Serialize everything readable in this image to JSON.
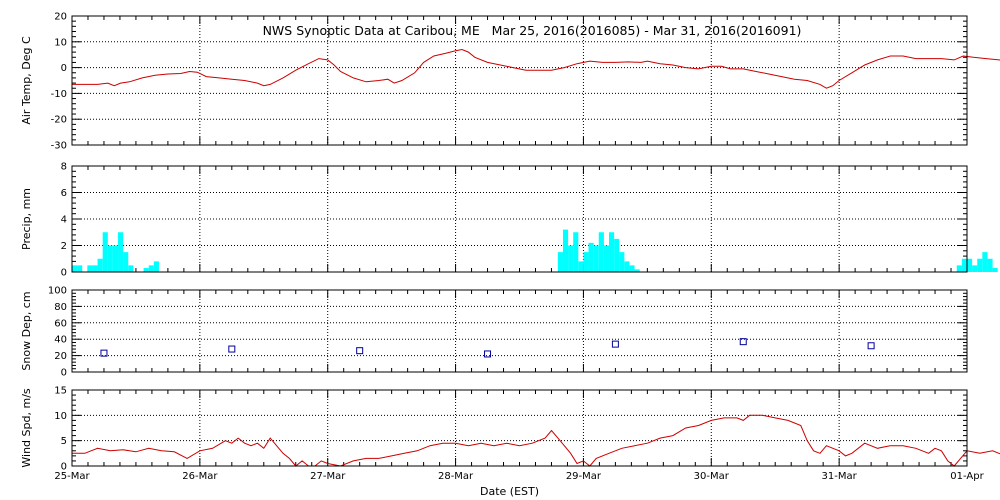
{
  "title": "NWS Synoptic Data at Caribou, ME   Mar 25, 2016(2016085) - Mar 31, 2016(2016091)",
  "xlabel": "Date (EST)",
  "x_ticks": [
    "25-Mar",
    "26-Mar",
    "27-Mar",
    "28-Mar",
    "29-Mar",
    "30-Mar",
    "31-Mar",
    "01-Apr"
  ],
  "colors": {
    "temp": "#cc0000",
    "precip": "#00ffff",
    "snow": "#000099",
    "wind": "#cc0000"
  },
  "chart_data": [
    {
      "type": "line",
      "ylabel": "Air Temp, Deg C",
      "ylim": [
        -30,
        20
      ],
      "yticks": [
        -30,
        -20,
        -10,
        0,
        10,
        20
      ],
      "grid": true,
      "x_unit": "days since 25-Mar 00:00 EST",
      "points": [
        [
          0,
          -6.5
        ],
        [
          0.1,
          -6.5
        ],
        [
          0.2,
          -6.5
        ],
        [
          0.28,
          -6
        ],
        [
          0.33,
          -7
        ],
        [
          0.38,
          -6
        ],
        [
          0.45,
          -5.5
        ],
        [
          0.55,
          -4
        ],
        [
          0.65,
          -3
        ],
        [
          0.75,
          -2.5
        ],
        [
          0.85,
          -2.3
        ],
        [
          0.92,
          -1.5
        ],
        [
          0.98,
          -1.8
        ],
        [
          1.05,
          -3.5
        ],
        [
          1.15,
          -4
        ],
        [
          1.25,
          -4.5
        ],
        [
          1.35,
          -5
        ],
        [
          1.45,
          -6
        ],
        [
          1.5,
          -7
        ],
        [
          1.55,
          -6.5
        ],
        [
          1.65,
          -4
        ],
        [
          1.75,
          -1
        ],
        [
          1.85,
          1.5
        ],
        [
          1.93,
          3.5
        ],
        [
          2.0,
          3
        ],
        [
          2.05,
          1
        ],
        [
          2.1,
          -1.5
        ],
        [
          2.2,
          -4
        ],
        [
          2.3,
          -5.5
        ],
        [
          2.4,
          -5
        ],
        [
          2.47,
          -4.5
        ],
        [
          2.52,
          -6
        ],
        [
          2.58,
          -5
        ],
        [
          2.68,
          -2
        ],
        [
          2.75,
          2
        ],
        [
          2.83,
          4.5
        ],
        [
          2.92,
          5.5
        ],
        [
          3.0,
          6.5
        ],
        [
          3.05,
          7
        ],
        [
          3.1,
          6
        ],
        [
          3.15,
          4
        ],
        [
          3.25,
          2
        ],
        [
          3.35,
          1
        ],
        [
          3.45,
          0
        ],
        [
          3.55,
          -1
        ],
        [
          3.65,
          -1
        ],
        [
          3.75,
          -1
        ],
        [
          3.85,
          0
        ],
        [
          3.95,
          1.5
        ],
        [
          4.05,
          2.5
        ],
        [
          4.15,
          2
        ],
        [
          4.25,
          2
        ],
        [
          4.35,
          2.2
        ],
        [
          4.45,
          2
        ],
        [
          4.5,
          2.5
        ],
        [
          4.6,
          1.5
        ],
        [
          4.7,
          1
        ],
        [
          4.8,
          0
        ],
        [
          4.9,
          -0.5
        ],
        [
          5.0,
          0.5
        ],
        [
          5.08,
          0.5
        ],
        [
          5.15,
          -0.5
        ],
        [
          5.25,
          -0.5
        ],
        [
          5.35,
          -1.5
        ],
        [
          5.45,
          -2.5
        ],
        [
          5.55,
          -3.5
        ],
        [
          5.65,
          -4.5
        ],
        [
          5.75,
          -5
        ],
        [
          5.85,
          -6.5
        ],
        [
          5.9,
          -8
        ],
        [
          5.95,
          -7
        ],
        [
          6.0,
          -5
        ],
        [
          6.1,
          -2
        ],
        [
          6.2,
          1
        ],
        [
          6.3,
          3
        ],
        [
          6.4,
          4.5
        ],
        [
          6.5,
          4.5
        ],
        [
          6.6,
          3.5
        ],
        [
          6.7,
          3.5
        ],
        [
          6.8,
          3.5
        ],
        [
          6.9,
          3
        ],
        [
          6.97,
          4.5
        ],
        [
          7.05,
          4
        ],
        [
          7.15,
          3.5
        ],
        [
          7.25,
          3
        ],
        [
          7.35,
          2.5
        ],
        [
          7.45,
          2
        ],
        [
          7.55,
          3
        ],
        [
          7.65,
          3
        ],
        [
          7.75,
          3.2
        ],
        [
          7.85,
          3.5
        ],
        [
          7.93,
          4.5
        ],
        [
          8.0,
          4.5
        ]
      ]
    },
    {
      "type": "bar",
      "ylabel": "Precip, mm",
      "ylim": [
        0,
        8
      ],
      "yticks": [
        0,
        2,
        4,
        6,
        8
      ],
      "grid": true,
      "x_unit": "days since 25-Mar 00:00 EST",
      "bins": [
        [
          0.0,
          0.5
        ],
        [
          0.04,
          0.5
        ],
        [
          0.12,
          0.5
        ],
        [
          0.16,
          0.5
        ],
        [
          0.2,
          1.0
        ],
        [
          0.24,
          3.0
        ],
        [
          0.28,
          2.0
        ],
        [
          0.32,
          2.0
        ],
        [
          0.36,
          3.0
        ],
        [
          0.4,
          1.5
        ],
        [
          0.44,
          0.5
        ],
        [
          0.56,
          0.3
        ],
        [
          0.6,
          0.5
        ],
        [
          0.64,
          0.8
        ],
        [
          3.8,
          1.5
        ],
        [
          3.84,
          3.2
        ],
        [
          3.88,
          2.0
        ],
        [
          3.92,
          3.0
        ],
        [
          3.96,
          0.8
        ],
        [
          4.0,
          1.5
        ],
        [
          4.04,
          2.2
        ],
        [
          4.08,
          2.0
        ],
        [
          4.12,
          3.0
        ],
        [
          4.16,
          2.0
        ],
        [
          4.2,
          3.0
        ],
        [
          4.24,
          2.5
        ],
        [
          4.28,
          1.5
        ],
        [
          4.32,
          0.8
        ],
        [
          4.36,
          0.5
        ],
        [
          4.4,
          0.2
        ],
        [
          6.92,
          0.5
        ],
        [
          6.96,
          1.0
        ],
        [
          7.0,
          1.0
        ],
        [
          7.04,
          0.5
        ],
        [
          7.08,
          1.0
        ],
        [
          7.12,
          1.5
        ],
        [
          7.16,
          1.0
        ],
        [
          7.2,
          0.3
        ],
        [
          7.28,
          0.3
        ]
      ],
      "bin_width": 0.04
    },
    {
      "type": "scatter",
      "ylabel": "Snow Dep, cm",
      "ylim": [
        0,
        100
      ],
      "yticks": [
        0,
        20,
        40,
        60,
        80,
        100
      ],
      "grid": true,
      "x_unit": "days since 25-Mar 00:00 EST",
      "points": [
        [
          0.25,
          23
        ],
        [
          1.25,
          28
        ],
        [
          2.25,
          26
        ],
        [
          3.25,
          22
        ],
        [
          4.25,
          34
        ],
        [
          5.25,
          37
        ],
        [
          6.25,
          32
        ]
      ]
    },
    {
      "type": "line",
      "ylabel": "Wind Spd, m/s",
      "ylim": [
        0,
        15
      ],
      "yticks": [
        0,
        5,
        10,
        15
      ],
      "grid": true,
      "x_unit": "days since 25-Mar 00:00 EST",
      "points": [
        [
          0,
          2.5
        ],
        [
          0.1,
          2.5
        ],
        [
          0.2,
          3.5
        ],
        [
          0.3,
          3
        ],
        [
          0.4,
          3.2
        ],
        [
          0.5,
          2.8
        ],
        [
          0.6,
          3.5
        ],
        [
          0.7,
          3
        ],
        [
          0.8,
          2.8
        ],
        [
          0.9,
          1.5
        ],
        [
          1.0,
          3
        ],
        [
          1.1,
          3.5
        ],
        [
          1.2,
          5
        ],
        [
          1.25,
          4.5
        ],
        [
          1.3,
          5.5
        ],
        [
          1.35,
          4.5
        ],
        [
          1.4,
          4
        ],
        [
          1.45,
          4.5
        ],
        [
          1.5,
          3.5
        ],
        [
          1.55,
          5.5
        ],
        [
          1.6,
          4
        ],
        [
          1.65,
          2.5
        ],
        [
          1.7,
          1.5
        ],
        [
          1.75,
          0
        ],
        [
          1.8,
          1
        ],
        [
          1.85,
          0
        ],
        [
          1.9,
          0
        ],
        [
          1.95,
          1
        ],
        [
          2.0,
          0.5
        ],
        [
          2.1,
          0
        ],
        [
          2.2,
          1
        ],
        [
          2.3,
          1.5
        ],
        [
          2.4,
          1.5
        ],
        [
          2.5,
          2
        ],
        [
          2.6,
          2.5
        ],
        [
          2.7,
          3
        ],
        [
          2.8,
          4
        ],
        [
          2.9,
          4.5
        ],
        [
          3.0,
          4.5
        ],
        [
          3.1,
          4
        ],
        [
          3.2,
          4.5
        ],
        [
          3.3,
          4
        ],
        [
          3.4,
          4.5
        ],
        [
          3.5,
          4
        ],
        [
          3.6,
          4.5
        ],
        [
          3.7,
          5.5
        ],
        [
          3.75,
          7
        ],
        [
          3.8,
          5.5
        ],
        [
          3.85,
          4
        ],
        [
          3.9,
          2.5
        ],
        [
          3.95,
          0.5
        ],
        [
          4.0,
          1
        ],
        [
          4.05,
          0
        ],
        [
          4.1,
          1.5
        ],
        [
          4.2,
          2.5
        ],
        [
          4.3,
          3.5
        ],
        [
          4.4,
          4
        ],
        [
          4.5,
          4.5
        ],
        [
          4.6,
          5.5
        ],
        [
          4.7,
          6
        ],
        [
          4.8,
          7.5
        ],
        [
          4.9,
          8
        ],
        [
          5.0,
          9
        ],
        [
          5.1,
          9.5
        ],
        [
          5.2,
          9.5
        ],
        [
          5.25,
          9
        ],
        [
          5.3,
          10
        ],
        [
          5.4,
          10
        ],
        [
          5.5,
          9.5
        ],
        [
          5.6,
          9
        ],
        [
          5.7,
          8
        ],
        [
          5.75,
          5
        ],
        [
          5.8,
          3
        ],
        [
          5.85,
          2.5
        ],
        [
          5.9,
          4
        ],
        [
          6.0,
          3
        ],
        [
          6.05,
          2
        ],
        [
          6.1,
          2.5
        ],
        [
          6.2,
          4.5
        ],
        [
          6.3,
          3.5
        ],
        [
          6.4,
          4
        ],
        [
          6.5,
          4
        ],
        [
          6.6,
          3.5
        ],
        [
          6.7,
          2.5
        ],
        [
          6.75,
          3.5
        ],
        [
          6.8,
          3
        ],
        [
          6.85,
          1
        ],
        [
          6.9,
          0
        ],
        [
          6.95,
          1.5
        ],
        [
          7.0,
          3
        ],
        [
          7.1,
          2.5
        ],
        [
          7.2,
          3
        ],
        [
          7.3,
          2
        ],
        [
          7.4,
          2.5
        ],
        [
          7.5,
          3
        ],
        [
          7.6,
          2.8
        ],
        [
          7.7,
          3
        ],
        [
          7.8,
          2
        ],
        [
          7.85,
          1.5
        ],
        [
          7.9,
          1
        ],
        [
          7.95,
          2
        ],
        [
          8.0,
          2.5
        ]
      ]
    }
  ]
}
